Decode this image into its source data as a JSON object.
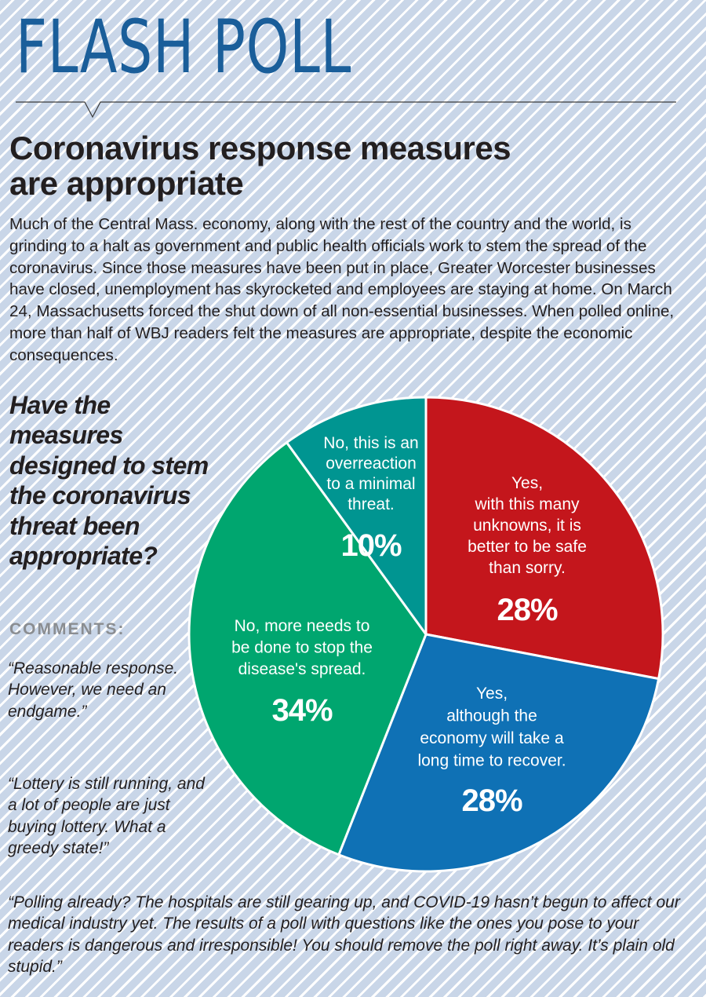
{
  "header": {
    "title": "FLASH POLL",
    "headline": "Coronavirus response measures are appropriate",
    "intro": "Much of the Central Mass. economy, along with the rest of the country and the world, is grinding to a halt as government and public health officials work to stem the spread of the coronavirus. Since those measures have been put in place, Greater Worcester businesses have closed, unemployment has skyrocketed and employees are staying at home. On March 24, Massachusetts forced the shut down of all non-essential businesses. When polled online, more than half of WBJ readers felt the measures are appropriate, despite the economic consequences."
  },
  "question": "Have the measures designed to stem the coronavirus threat been appropriate?",
  "comments": {
    "label": "COMMENTS:",
    "items": [
      "“Reasonable response. However, we need an endgame.”",
      "“Lottery is still running, and a lot of people are just buying lottery. What a greedy state!”",
      "“Polling already? The hospitals are still gearing up, and COVID-19 hasn’t begun to affect our medical industry yet. The results of a poll with questions like the ones you pose to your readers is dangerous and irresponsible! You should remove the poll right away. It’s plain old stupid.”"
    ]
  },
  "chart_data": {
    "type": "pie",
    "title": "Have the measures designed to stem the coronavirus threat been appropriate?",
    "start": "12 o'clock, clockwise",
    "slices": [
      {
        "label": "Yes, with this many unknowns, it is better to be safe than sorry.",
        "lines": [
          "Yes,",
          "with this many",
          "unknowns, it is",
          "better to be safe",
          "than sorry."
        ],
        "pct_label": "28%",
        "value": 28,
        "color": "#c4161c"
      },
      {
        "label": "Yes, although the economy will take a long time to recover.",
        "lines": [
          "Yes,",
          "although the",
          "economy will take a",
          "long time to recover."
        ],
        "pct_label": "28%",
        "value": 28,
        "color": "#0f71b5"
      },
      {
        "label": "No, more needs to be done to stop the disease's spread.",
        "lines": [
          "No, more needs to",
          "be done to stop the",
          "disease's spread."
        ],
        "pct_label": "34%",
        "value": 34,
        "color": "#00a66f"
      },
      {
        "label": "No, this is an overreaction to a minimal threat.",
        "lines": [
          "No, this is an",
          "overreaction",
          "to a minimal",
          "threat."
        ],
        "pct_label": "10%",
        "value": 10,
        "color": "#009591"
      }
    ]
  }
}
